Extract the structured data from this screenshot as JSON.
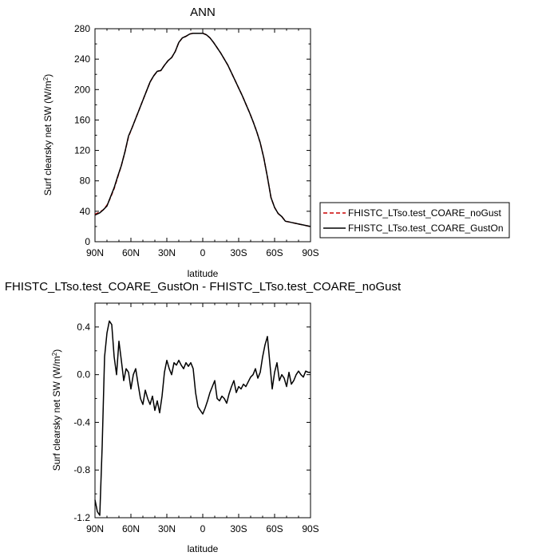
{
  "chart_data": [
    {
      "type": "line",
      "title": "ANN",
      "xlabel": "latitude",
      "ylabel": "Surf clearsky net SW (W/m2)",
      "ylabel_main": "Surf clearsky net SW (W/m",
      "ylabel_sup": "2",
      "ylabel_end": ")",
      "xlim": [
        90,
        -90
      ],
      "ylim": [
        0,
        280
      ],
      "x_ticks": [
        90,
        60,
        30,
        0,
        -30,
        -60,
        -90
      ],
      "x_tick_labels": [
        "90N",
        "60N",
        "30N",
        "0",
        "30S",
        "60S",
        "90S"
      ],
      "y_ticks": [
        0,
        40,
        80,
        120,
        160,
        200,
        240,
        280
      ],
      "y_tick_labels": [
        "0",
        "40",
        "80",
        "120",
        "160",
        "200",
        "240",
        "280"
      ],
      "grid": false,
      "legend": "right",
      "series": [
        {
          "name": "FHISTC_LTso.test_COARE_noGust",
          "color": "#cc0000",
          "dash": "dashed",
          "x": [
            90,
            86,
            83,
            80,
            77,
            74,
            71,
            68,
            65,
            62,
            59,
            56,
            53,
            50,
            47,
            44,
            41,
            38,
            35,
            32,
            29,
            26,
            23,
            20,
            17,
            14,
            11,
            8,
            5,
            2,
            0,
            -3,
            -6,
            -9,
            -12,
            -15,
            -18,
            -21,
            -24,
            -27,
            -30,
            -33,
            -36,
            -39,
            -42,
            -45,
            -48,
            -51,
            -54,
            -57,
            -60,
            -63,
            -66,
            -69,
            -72,
            -75,
            -78,
            -81,
            -84,
            -87,
            -90
          ],
          "values": [
            36,
            39,
            42,
            48,
            58,
            70,
            85,
            100,
            118,
            138,
            150,
            162,
            174,
            186,
            198,
            210,
            218,
            224,
            225,
            232,
            238,
            242,
            250,
            262,
            268,
            270,
            273,
            274,
            274,
            274,
            274,
            272,
            268,
            262,
            255,
            248,
            240,
            232,
            222,
            212,
            202,
            192,
            181,
            170,
            158,
            145,
            130,
            110,
            85,
            58,
            45,
            37,
            33,
            27,
            26,
            25,
            24,
            23,
            22,
            21,
            20
          ]
        },
        {
          "name": "FHISTC_LTso.test_COARE_GustOn",
          "color": "#000000",
          "dash": "solid",
          "x": [
            90,
            86,
            83,
            80,
            77,
            74,
            71,
            68,
            65,
            62,
            59,
            56,
            53,
            50,
            47,
            44,
            41,
            38,
            35,
            32,
            29,
            26,
            23,
            20,
            17,
            14,
            11,
            8,
            5,
            2,
            0,
            -3,
            -6,
            -9,
            -12,
            -15,
            -18,
            -21,
            -24,
            -27,
            -30,
            -33,
            -36,
            -39,
            -42,
            -45,
            -48,
            -51,
            -54,
            -57,
            -60,
            -63,
            -66,
            -69,
            -72,
            -75,
            -78,
            -81,
            -84,
            -87,
            -90
          ],
          "values": [
            35,
            38,
            42,
            47,
            59,
            71,
            86,
            100,
            118,
            139,
            150,
            162,
            174,
            186,
            198,
            210,
            218,
            224,
            225,
            232,
            238,
            242,
            250,
            262,
            268,
            270,
            273,
            274,
            274,
            274,
            274,
            272,
            268,
            262,
            255,
            248,
            240,
            232,
            222,
            212,
            202,
            192,
            181,
            170,
            158,
            145,
            130,
            110,
            85,
            58,
            45,
            37,
            33,
            27,
            26,
            25,
            24,
            23,
            22,
            21,
            20
          ]
        }
      ]
    },
    {
      "type": "line",
      "title": "FHISTC_LTso.test_COARE_GustOn - FHISTC_LTso.test_COARE_noGust",
      "xlabel": "latitude",
      "ylabel": "Surf clearsky net SW (W/m2)",
      "ylabel_main": "Surf clearsky net SW (W/m",
      "ylabel_sup": "2",
      "ylabel_end": ")",
      "xlim": [
        90,
        -90
      ],
      "ylim": [
        -1.2,
        0.6
      ],
      "x_ticks": [
        90,
        60,
        30,
        0,
        -30,
        -60,
        -90
      ],
      "x_tick_labels": [
        "90N",
        "60N",
        "30N",
        "0",
        "30S",
        "60S",
        "90S"
      ],
      "y_ticks": [
        -1.2,
        -0.8,
        -0.4,
        0.0,
        0.4
      ],
      "y_tick_labels": [
        "-1.2",
        "-0.8",
        "-0.4",
        "0.0",
        "0.4"
      ],
      "grid": false,
      "series": [
        {
          "color": "#000000",
          "dash": "solid",
          "x": [
            90,
            88,
            86,
            84,
            82,
            80,
            78,
            76,
            74,
            72,
            70,
            68,
            66,
            64,
            62,
            60,
            58,
            56,
            54,
            52,
            50,
            48,
            46,
            44,
            42,
            40,
            38,
            36,
            34,
            32,
            30,
            28,
            26,
            24,
            22,
            20,
            18,
            16,
            14,
            12,
            10,
            8,
            6,
            4,
            2,
            0,
            -2,
            -4,
            -6,
            -8,
            -10,
            -12,
            -14,
            -16,
            -18,
            -20,
            -22,
            -24,
            -26,
            -28,
            -30,
            -32,
            -34,
            -36,
            -38,
            -40,
            -42,
            -44,
            -46,
            -48,
            -50,
            -52,
            -54,
            -56,
            -58,
            -60,
            -62,
            -64,
            -66,
            -68,
            -70,
            -72,
            -74,
            -76,
            -78,
            -80,
            -82,
            -84,
            -86,
            -88,
            -90
          ],
          "values": [
            -1.05,
            -1.15,
            -1.18,
            -0.6,
            0.15,
            0.35,
            0.45,
            0.42,
            0.15,
            0.0,
            0.28,
            0.12,
            -0.05,
            0.05,
            0.02,
            -0.12,
            0.0,
            0.05,
            -0.08,
            -0.2,
            -0.25,
            -0.13,
            -0.2,
            -0.25,
            -0.18,
            -0.3,
            -0.22,
            -0.32,
            -0.18,
            0.02,
            0.12,
            0.05,
            0.0,
            0.1,
            0.08,
            0.12,
            0.08,
            0.05,
            0.1,
            0.07,
            0.1,
            0.05,
            -0.15,
            -0.27,
            -0.3,
            -0.33,
            -0.28,
            -0.22,
            -0.15,
            -0.1,
            -0.05,
            -0.2,
            -0.22,
            -0.18,
            -0.2,
            -0.24,
            -0.16,
            -0.1,
            -0.05,
            -0.15,
            -0.1,
            -0.12,
            -0.08,
            -0.1,
            -0.06,
            -0.02,
            0.0,
            0.05,
            -0.03,
            0.02,
            0.15,
            0.25,
            0.32,
            0.1,
            -0.12,
            0.02,
            0.1,
            -0.05,
            0.0,
            -0.03,
            -0.1,
            0.02,
            -0.08,
            -0.05,
            0.0,
            0.03,
            0.0,
            -0.02,
            0.03,
            0.02,
            0.02
          ]
        }
      ]
    }
  ]
}
